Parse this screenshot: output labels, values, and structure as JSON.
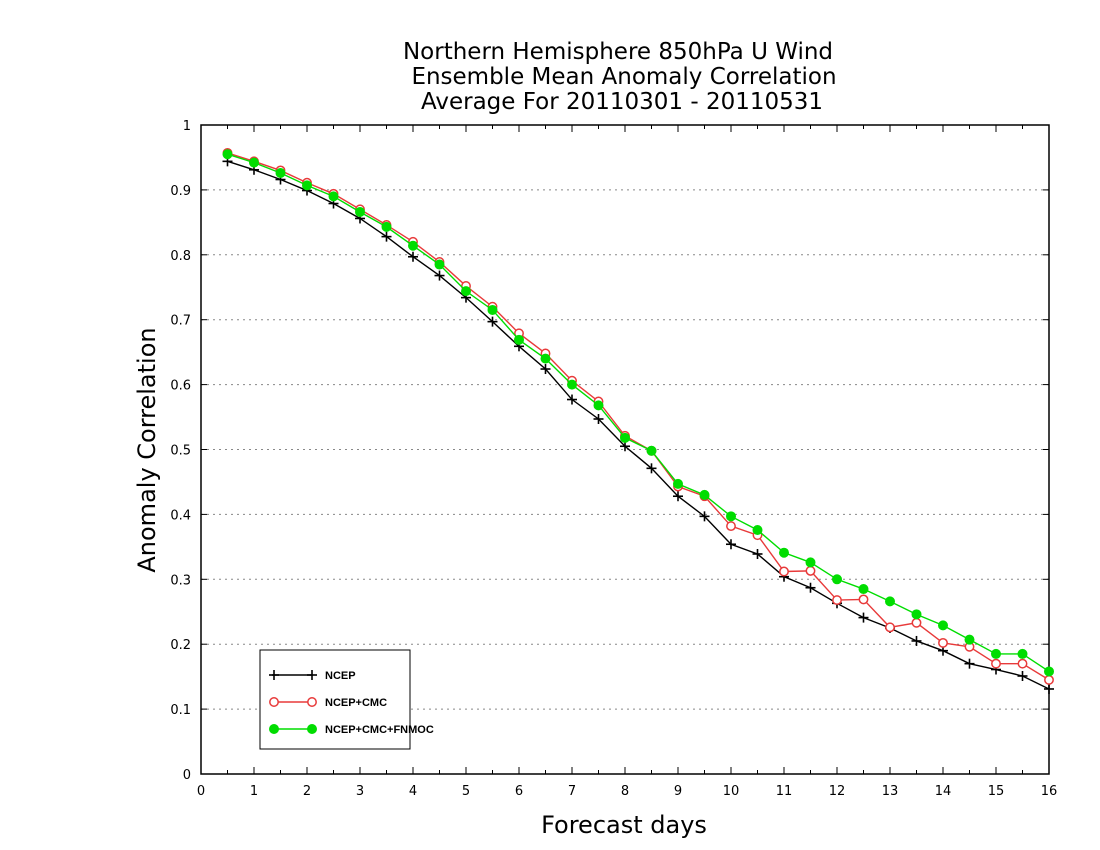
{
  "chart_data": {
    "type": "line",
    "title": [
      "Northern Hemisphere 850hPa U Wind",
      "Ensemble Mean Anomaly Correlation",
      "Average For 20110301 - 20110531"
    ],
    "xlabel": "Forecast days",
    "ylabel": "Anomaly Correlation",
    "xlim": [
      0,
      16
    ],
    "ylim": [
      0,
      1
    ],
    "x_ticks": [
      "0",
      "1",
      "2",
      "3",
      "4",
      "5",
      "6",
      "7",
      "8",
      "9",
      "10",
      "11",
      "12",
      "13",
      "14",
      "15",
      "16"
    ],
    "y_ticks": [
      "0",
      "0.1",
      "0.2",
      "0.3",
      "0.4",
      "0.5",
      "0.6",
      "0.7",
      "0.8",
      "0.9",
      "1"
    ],
    "grid": "horizontal dotted",
    "legend_position": "bottom-left",
    "x": [
      0.5,
      1,
      1.5,
      2,
      2.5,
      3,
      3.5,
      4,
      4.5,
      5,
      5.5,
      6,
      6.5,
      7,
      7.5,
      8,
      8.5,
      9,
      9.5,
      10,
      10.5,
      11,
      11.5,
      12,
      12.5,
      13,
      13.5,
      14,
      14.5,
      15,
      15.5,
      16
    ],
    "series": [
      {
        "name": "NCEP",
        "color": "#000000",
        "marker": "plus",
        "values": [
          0.944,
          0.931,
          0.916,
          0.899,
          0.879,
          0.856,
          0.828,
          0.797,
          0.768,
          0.734,
          0.697,
          0.659,
          0.624,
          0.577,
          0.547,
          0.505,
          0.471,
          0.428,
          0.397,
          0.354,
          0.339,
          0.304,
          0.287,
          0.263,
          0.241,
          0.225,
          0.205,
          0.19,
          0.17,
          0.161,
          0.151,
          0.131
        ]
      },
      {
        "name": "NCEP+CMC",
        "color": "#e83a3a",
        "marker": "open-circle",
        "values": [
          0.957,
          0.944,
          0.93,
          0.911,
          0.894,
          0.87,
          0.846,
          0.82,
          0.789,
          0.752,
          0.72,
          0.679,
          0.648,
          0.606,
          0.574,
          0.521,
          0.498,
          0.443,
          0.428,
          0.382,
          0.368,
          0.312,
          0.313,
          0.268,
          0.269,
          0.226,
          0.233,
          0.202,
          0.196,
          0.17,
          0.17,
          0.145
        ]
      },
      {
        "name": "NCEP+CMC+FNMOC",
        "color": "#00dd00",
        "marker": "filled-circle",
        "values": [
          0.955,
          0.942,
          0.926,
          0.907,
          0.89,
          0.866,
          0.843,
          0.814,
          0.785,
          0.744,
          0.715,
          0.669,
          0.64,
          0.6,
          0.568,
          0.518,
          0.498,
          0.447,
          0.43,
          0.397,
          0.376,
          0.341,
          0.326,
          0.3,
          0.285,
          0.266,
          0.246,
          0.229,
          0.207,
          0.185,
          0.185,
          0.158
        ]
      }
    ]
  }
}
